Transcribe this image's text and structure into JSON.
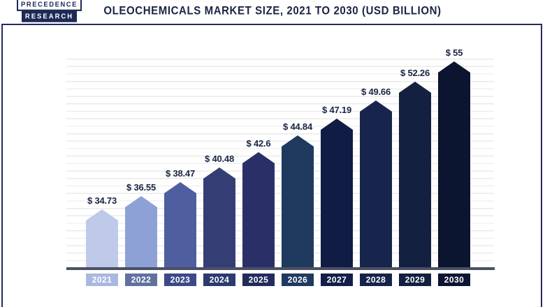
{
  "header": {
    "logo": {
      "line1": "PRECEDENCE",
      "line2": "RESEARCH"
    },
    "title": "OLEOCHEMICALS MARKET SIZE, 2021 TO 2030 (USD BILLION)"
  },
  "chart_data": {
    "type": "bar",
    "title": "OLEOCHEMICALS MARKET SIZE, 2021 TO 2030 (USD BILLION)",
    "unit": "USD Billion",
    "categories": [
      "2021",
      "2022",
      "2023",
      "2024",
      "2025",
      "2026",
      "2027",
      "2028",
      "2029",
      "2030"
    ],
    "values": [
      34.73,
      36.55,
      38.47,
      40.48,
      42.6,
      44.84,
      47.19,
      49.66,
      52.26,
      55
    ],
    "value_labels": [
      "$ 34.73",
      "$ 36.55",
      "$ 38.47",
      "$ 40.48",
      "$ 42.6",
      "$ 44.84",
      "$ 47.19",
      "$ 49.66",
      "$ 52.26",
      "$ 55"
    ],
    "bar_colors": [
      "#bfc9e8",
      "#8ea1d6",
      "#4f5e9e",
      "#353e74",
      "#2a3067",
      "#20395e",
      "#111c44",
      "#17254c",
      "#14203f",
      "#0b1530"
    ],
    "category_box_colors": [
      "#a9b8e0",
      "#61719f",
      "#3b4a87",
      "#2d3a6f",
      "#222b5c",
      "#1e3a60",
      "#131e49",
      "#15234a",
      "#131f3e",
      "#0c1533"
    ],
    "grid": "horizontal-light",
    "legend": "none",
    "y_axis_visible_baseline": 26.8,
    "ylim": [
      26.8,
      57
    ],
    "axis_color": "#4a5063",
    "label_color": "#1b2444",
    "frame_color": "#262c5e"
  }
}
